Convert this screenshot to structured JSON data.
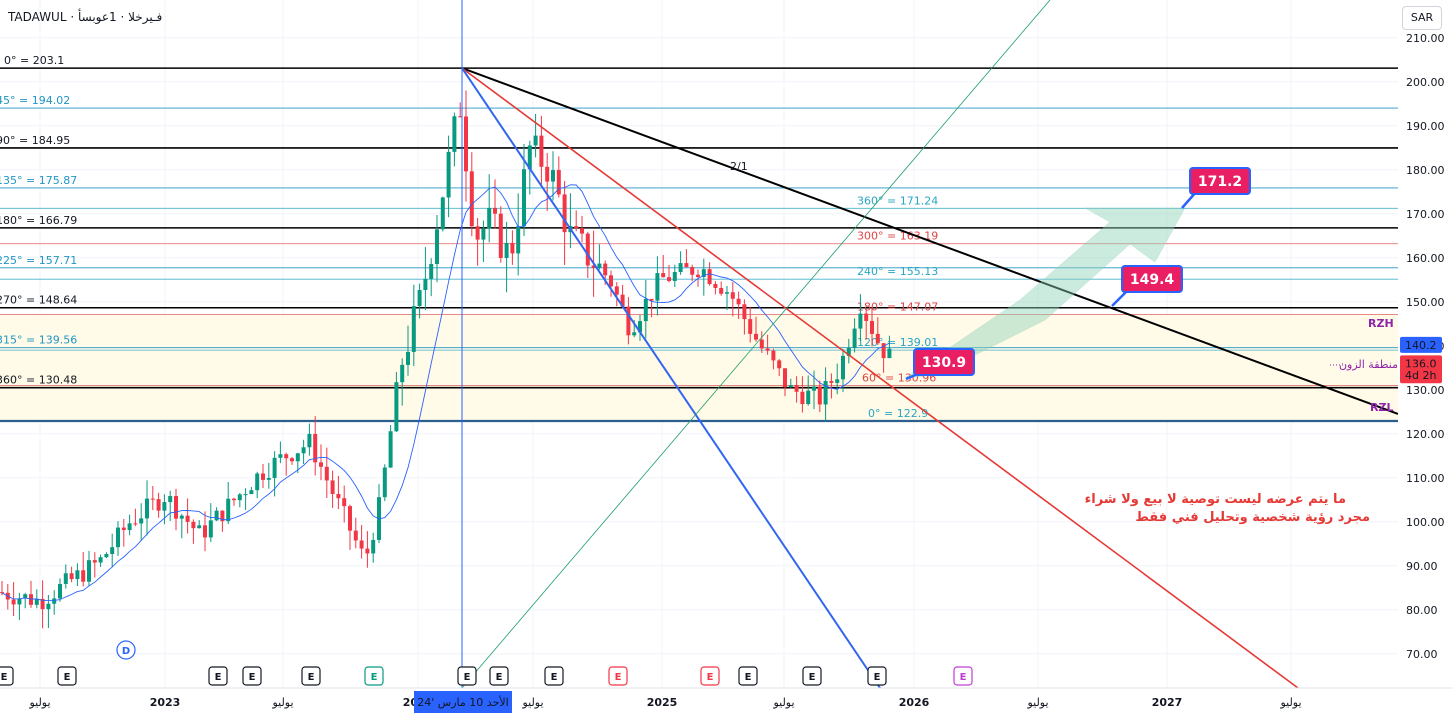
{
  "header": {
    "title": "TADAWUL · فـيرخلا · 1عوبسأ",
    "currency_button": "SAR"
  },
  "chart_data": {
    "type": "candlestick",
    "instrument": "TADAWUL",
    "x_axis_labels": [
      "يوليو",
      "2023",
      "يوليو",
      "2024",
      "يوليو",
      "2025",
      "يوليو",
      "2026",
      "يوليو",
      "2027",
      "يوليو"
    ],
    "crosshair_date_label": "الأحد 10 مارس '24",
    "y_ticks": [
      70,
      80,
      90,
      100,
      110,
      120,
      130,
      140,
      150,
      160,
      170,
      180,
      190,
      200,
      210
    ],
    "ylim": [
      63,
      216
    ],
    "horizontal_levels": [
      {
        "label": "0° = 203.1",
        "value": 203.1,
        "color": "#000000"
      },
      {
        "label": "45° = 194.02",
        "value": 194.02,
        "color": "#2196c4"
      },
      {
        "label": "90° = 184.95",
        "value": 184.95,
        "color": "#000000"
      },
      {
        "label": "135° = 175.87",
        "value": 175.87,
        "color": "#2196c4"
      },
      {
        "label": "180° = 166.79",
        "value": 166.79,
        "color": "#000000"
      },
      {
        "label": "225° = 157.71",
        "value": 157.71,
        "color": "#2196c4"
      },
      {
        "label": "270° = 148.64",
        "value": 148.64,
        "color": "#000000"
      },
      {
        "label": "315° = 139.56",
        "value": 139.56,
        "color": "#2196c4"
      },
      {
        "label": "360° = 130.48",
        "value": 130.48,
        "color": "#000000"
      }
    ],
    "right_levels": [
      {
        "label": "360° = 171.24",
        "value": 171.24,
        "color": "#26a6c4"
      },
      {
        "label": "300° = 163.19",
        "value": 163.19,
        "color": "#e04444"
      },
      {
        "label": "240° = 155.13",
        "value": 155.13,
        "color": "#26a6c4"
      },
      {
        "label": "180° = 147.07",
        "value": 147.07,
        "color": "#e04444"
      },
      {
        "label": "120° = 139.01",
        "value": 139.01,
        "color": "#26a6c4"
      },
      {
        "label": "60° = 130.96",
        "value": 130.96,
        "color": "#e04444"
      },
      {
        "label": "0° = 122.9",
        "value": 122.9,
        "color": "#26a6c4"
      }
    ],
    "zone": {
      "top": 147.07,
      "bottom": 122.9,
      "label_high": "RZH",
      "label_low": "RZL",
      "label_mid": "منطقة الزون"
    },
    "trendline_label": "2/1",
    "price_labels": [
      {
        "text": "140.2",
        "value": 140.2,
        "color": "#2962ff"
      },
      {
        "text": "136.0",
        "value": 136.0,
        "color": "#f23645"
      },
      {
        "text": "4d 2h",
        "value": 133.3,
        "color": "#f23645"
      }
    ],
    "callouts": [
      {
        "text": "171.2",
        "value": 171.2
      },
      {
        "text": "149.4",
        "value": 149.4
      },
      {
        "text": "130.9",
        "value": 130.9
      }
    ],
    "disclaimer": [
      "ما يتم عرضه ليست توصية  لا بيع ولا شراء",
      "مجرد رؤية شخصية وتحليل فني  فقط"
    ],
    "events": [
      "E",
      "E",
      "D",
      "E",
      "E",
      "E",
      "E",
      "E",
      "E",
      "E",
      "E",
      "E",
      "E",
      "E",
      "E",
      "E"
    ]
  }
}
